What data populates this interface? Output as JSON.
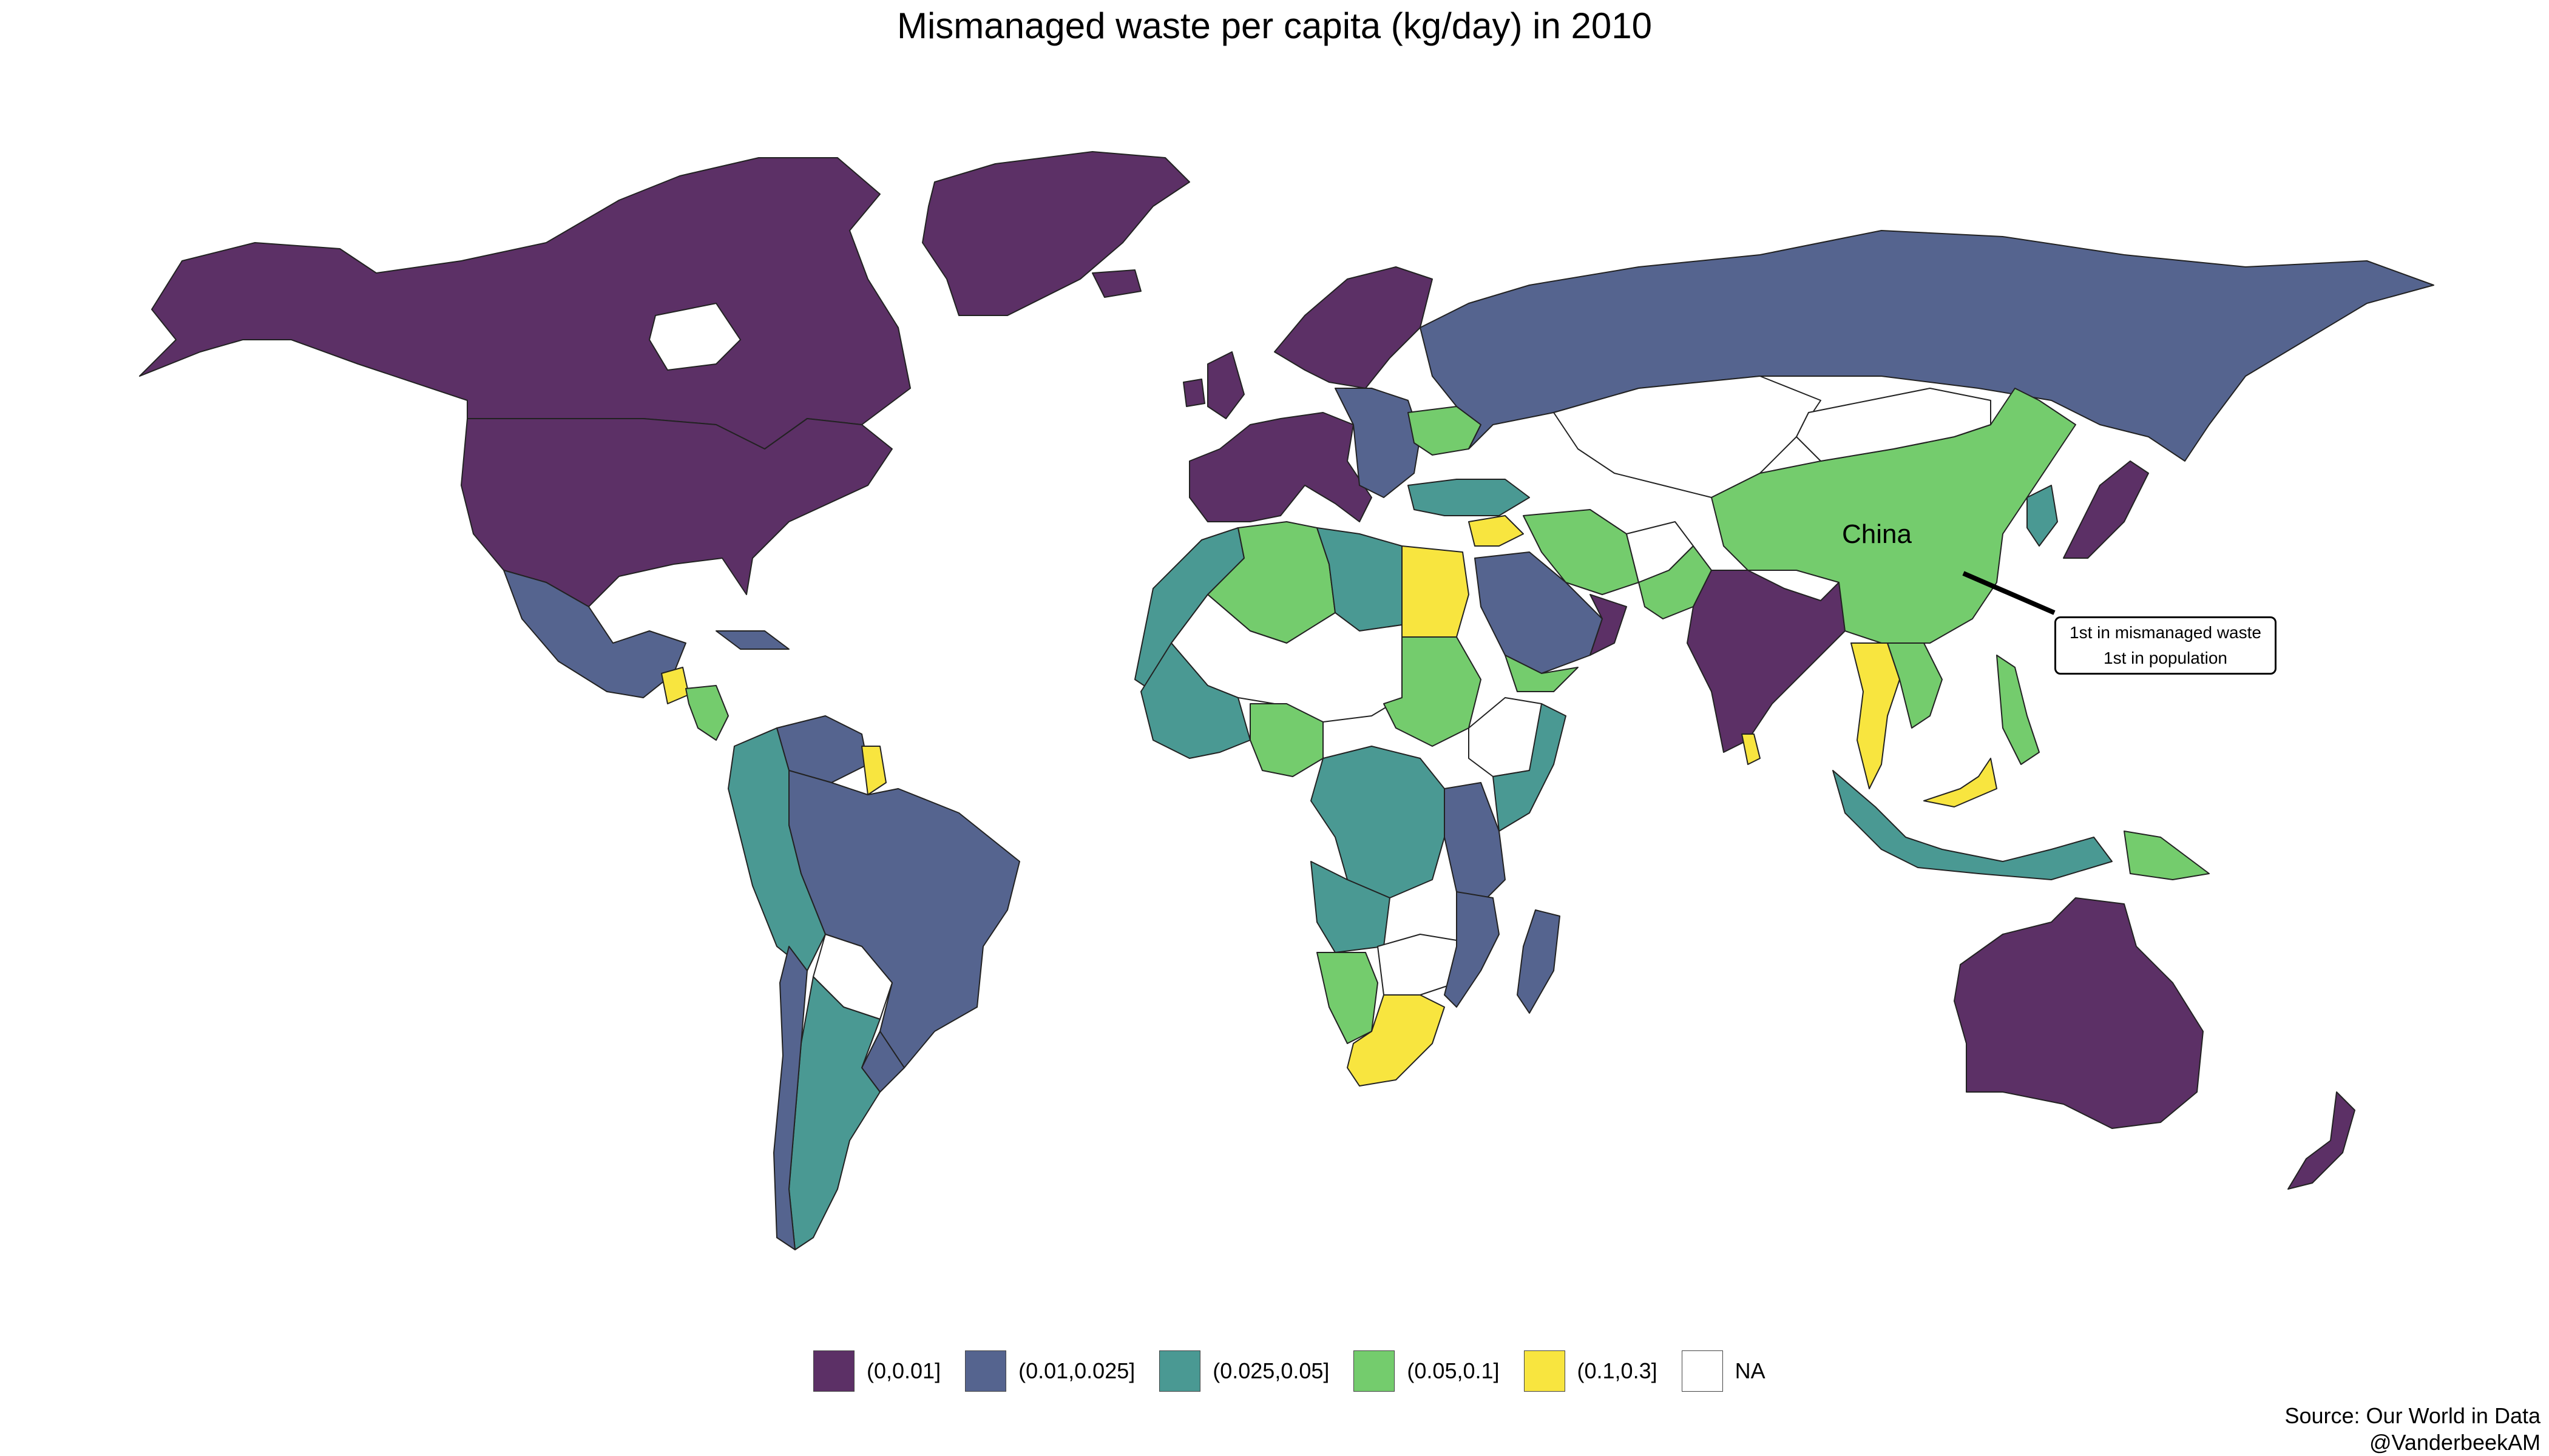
{
  "title": "Mismanaged waste per capita (kg/day) in 2010",
  "legend": [
    {
      "label": "(0,0.01]",
      "color": "#5c3066"
    },
    {
      "label": "(0.01,0.025]",
      "color": "#55648f"
    },
    {
      "label": "(0.025,0.05]",
      "color": "#4a9993"
    },
    {
      "label": "(0.05,0.1]",
      "color": "#74cc6d"
    },
    {
      "label": "(0.1,0.3]",
      "color": "#f8e53f"
    },
    {
      "label": "NA",
      "color": "#ffffff"
    }
  ],
  "highlight": {
    "country": "China",
    "note_line1": "1st in mismanaged waste",
    "note_line2": "1st in population"
  },
  "source": {
    "line1": "Source: Our World in Data",
    "line2": "@VanderbeekAM"
  },
  "regions": [
    {
      "name": "Canada",
      "cls": "(0,0.01]"
    },
    {
      "name": "Greenland",
      "cls": "(0,0.01]"
    },
    {
      "name": "United States",
      "cls": "(0,0.01]"
    },
    {
      "name": "Mexico",
      "cls": "(0.01,0.025]"
    },
    {
      "name": "Guatemala",
      "cls": "(0.1,0.3]"
    },
    {
      "name": "Central America",
      "cls": "(0.05,0.1]"
    },
    {
      "name": "Cuba",
      "cls": "(0.01,0.025]"
    },
    {
      "name": "Venezuela",
      "cls": "(0.01,0.025]"
    },
    {
      "name": "Guyana",
      "cls": "(0.1,0.3]"
    },
    {
      "name": "Colombia / Ecuador / Peru",
      "cls": "(0.025,0.05]"
    },
    {
      "name": "Brazil",
      "cls": "(0.01,0.025]"
    },
    {
      "name": "Bolivia",
      "cls": "NA"
    },
    {
      "name": "Uruguay",
      "cls": "(0.01,0.025]"
    },
    {
      "name": "Argentina",
      "cls": "(0.025,0.05]"
    },
    {
      "name": "Chile",
      "cls": "(0.01,0.025]"
    },
    {
      "name": "Scandinavia",
      "cls": "(0,0.01]"
    },
    {
      "name": "Western Europe",
      "cls": "(0,0.01]"
    },
    {
      "name": "Eastern Europe",
      "cls": "(0.01,0.025]"
    },
    {
      "name": "Ukraine",
      "cls": "(0.05,0.1]"
    },
    {
      "name": "Russia",
      "cls": "(0.01,0.025]"
    },
    {
      "name": "Kazakhstan / Central Asia",
      "cls": "NA"
    },
    {
      "name": "Turkey",
      "cls": "(0.025,0.05]"
    },
    {
      "name": "Syria",
      "cls": "(0.1,0.3]"
    },
    {
      "name": "Iran",
      "cls": "(0.05,0.1]"
    },
    {
      "name": "Saudi Arabia",
      "cls": "(0.01,0.025]"
    },
    {
      "name": "Oman",
      "cls": "(0,0.01]"
    },
    {
      "name": "Pakistan",
      "cls": "(0.05,0.1]"
    },
    {
      "name": "India",
      "cls": "(0,0.01]"
    },
    {
      "name": "Sri Lanka",
      "cls": "(0.1,0.3]"
    },
    {
      "name": "China",
      "cls": "(0.05,0.1]"
    },
    {
      "name": "Mongolia",
      "cls": "NA"
    },
    {
      "name": "Korea",
      "cls": "(0.025,0.05]"
    },
    {
      "name": "Japan",
      "cls": "(0,0.01]"
    },
    {
      "name": "Thailand",
      "cls": "(0.1,0.3]"
    },
    {
      "name": "Vietnam",
      "cls": "(0.05,0.1]"
    },
    {
      "name": "Malaysia",
      "cls": "(0.1,0.3]"
    },
    {
      "name": "Indonesia",
      "cls": "(0.025,0.05]"
    },
    {
      "name": "Philippines",
      "cls": "(0.05,0.1]"
    },
    {
      "name": "Papua New Guinea",
      "cls": "(0.05,0.1]"
    },
    {
      "name": "Australia",
      "cls": "(0,0.01]"
    },
    {
      "name": "New Zealand",
      "cls": "(0,0.01]"
    },
    {
      "name": "Morocco / Western Sahara",
      "cls": "(0.025,0.05]"
    },
    {
      "name": "Algeria",
      "cls": "(0.05,0.1]"
    },
    {
      "name": "Libya",
      "cls": "(0.025,0.05]"
    },
    {
      "name": "Egypt",
      "cls": "(0.1,0.3]"
    },
    {
      "name": "Mali / Niger / Chad",
      "cls": "NA"
    },
    {
      "name": "Sudan",
      "cls": "(0.05,0.1]"
    },
    {
      "name": "Nigeria",
      "cls": "(0.05,0.1]"
    },
    {
      "name": "West African coast",
      "cls": "(0.025,0.05]"
    },
    {
      "name": "Ethiopia",
      "cls": "NA"
    },
    {
      "name": "Somalia / Kenya coast",
      "cls": "(0.025,0.05]"
    },
    {
      "name": "DR Congo",
      "cls": "(0.025,0.05]"
    },
    {
      "name": "Tanzania",
      "cls": "(0.01,0.025]"
    },
    {
      "name": "Angola",
      "cls": "(0.025,0.05]"
    },
    {
      "name": "Namibia",
      "cls": "(0.05,0.1]"
    },
    {
      "name": "Botswana / Zimbabwe",
      "cls": "NA"
    },
    {
      "name": "Mozambique",
      "cls": "(0.01,0.025]"
    },
    {
      "name": "South Africa",
      "cls": "(0.1,0.3]"
    },
    {
      "name": "Madagascar",
      "cls": "(0.01,0.025]"
    },
    {
      "name": "Yemen",
      "cls": "(0.05,0.1]"
    },
    {
      "name": "Afghanistan",
      "cls": "NA"
    },
    {
      "name": "Iceland",
      "cls": "(0,0.01]"
    },
    {
      "name": "United Kingdom",
      "cls": "(0,0.01]"
    },
    {
      "name": "Ireland",
      "cls": "(0,0.01]"
    }
  ]
}
